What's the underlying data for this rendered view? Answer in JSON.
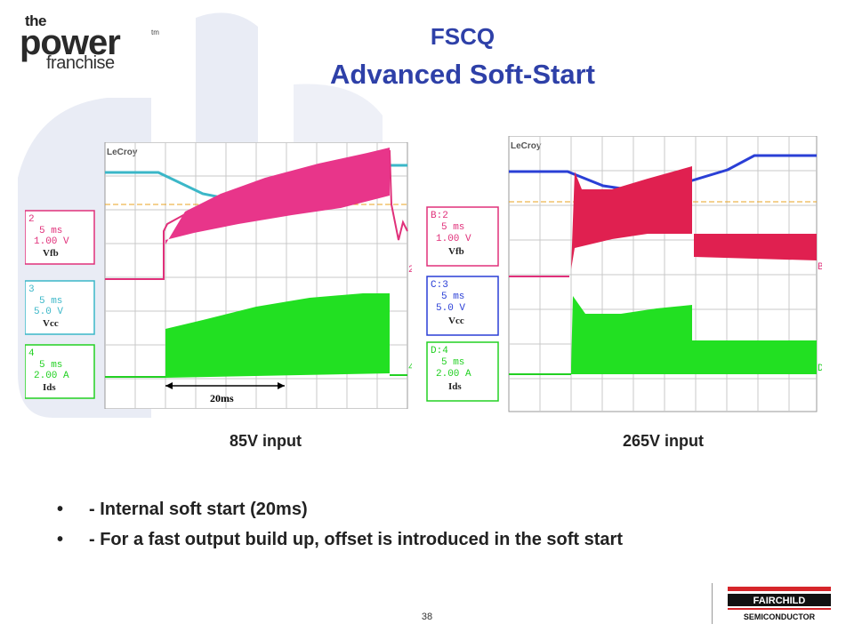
{
  "logo": {
    "the": "the",
    "power": "power",
    "tm": "tm",
    "franchise": "franchise"
  },
  "title": {
    "line1": "FSCQ",
    "line2": "Advanced Soft-Start"
  },
  "scope_left": {
    "brand": "LeCroy",
    "channels": [
      {
        "id": "2",
        "time": "5 ms",
        "scale": "1.00 V",
        "signal": "Vfb",
        "color": "#e0307a"
      },
      {
        "id": "3",
        "time": "5 ms",
        "scale": "5.0 V",
        "signal": "Vcc",
        "color": "#3bb7c8"
      },
      {
        "id": "4",
        "time": "5 ms",
        "scale": "2.00 A",
        "signal": "Ids",
        "color": "#22d022"
      }
    ],
    "annotation": "20ms",
    "markers": [
      "2",
      "4"
    ]
  },
  "scope_right": {
    "brand": "LeCroy",
    "channels": [
      {
        "id": "B:2",
        "time": "5 ms",
        "scale": "1.00 V",
        "signal": "Vfb",
        "color": "#e0307a"
      },
      {
        "id": "C:3",
        "time": "5 ms",
        "scale": "5.0 V",
        "signal": "Vcc",
        "color": "#2a3fd6"
      },
      {
        "id": "D:4",
        "time": "5 ms",
        "scale": "2.00 A",
        "signal": "Ids",
        "color": "#22d022"
      }
    ],
    "markers": [
      "B",
      "D"
    ]
  },
  "captions": {
    "left": "85V input",
    "right": "265V input"
  },
  "bullets": [
    {
      "dot": "•",
      "text": "- Internal soft start (20ms)"
    },
    {
      "dot": "•",
      "text": "- For a fast output build up, offset is introduced in the soft start"
    }
  ],
  "page_number": "38",
  "footer_logo": {
    "top": "FAIRCHILD",
    "bottom": "SEMICONDUCTOR"
  }
}
